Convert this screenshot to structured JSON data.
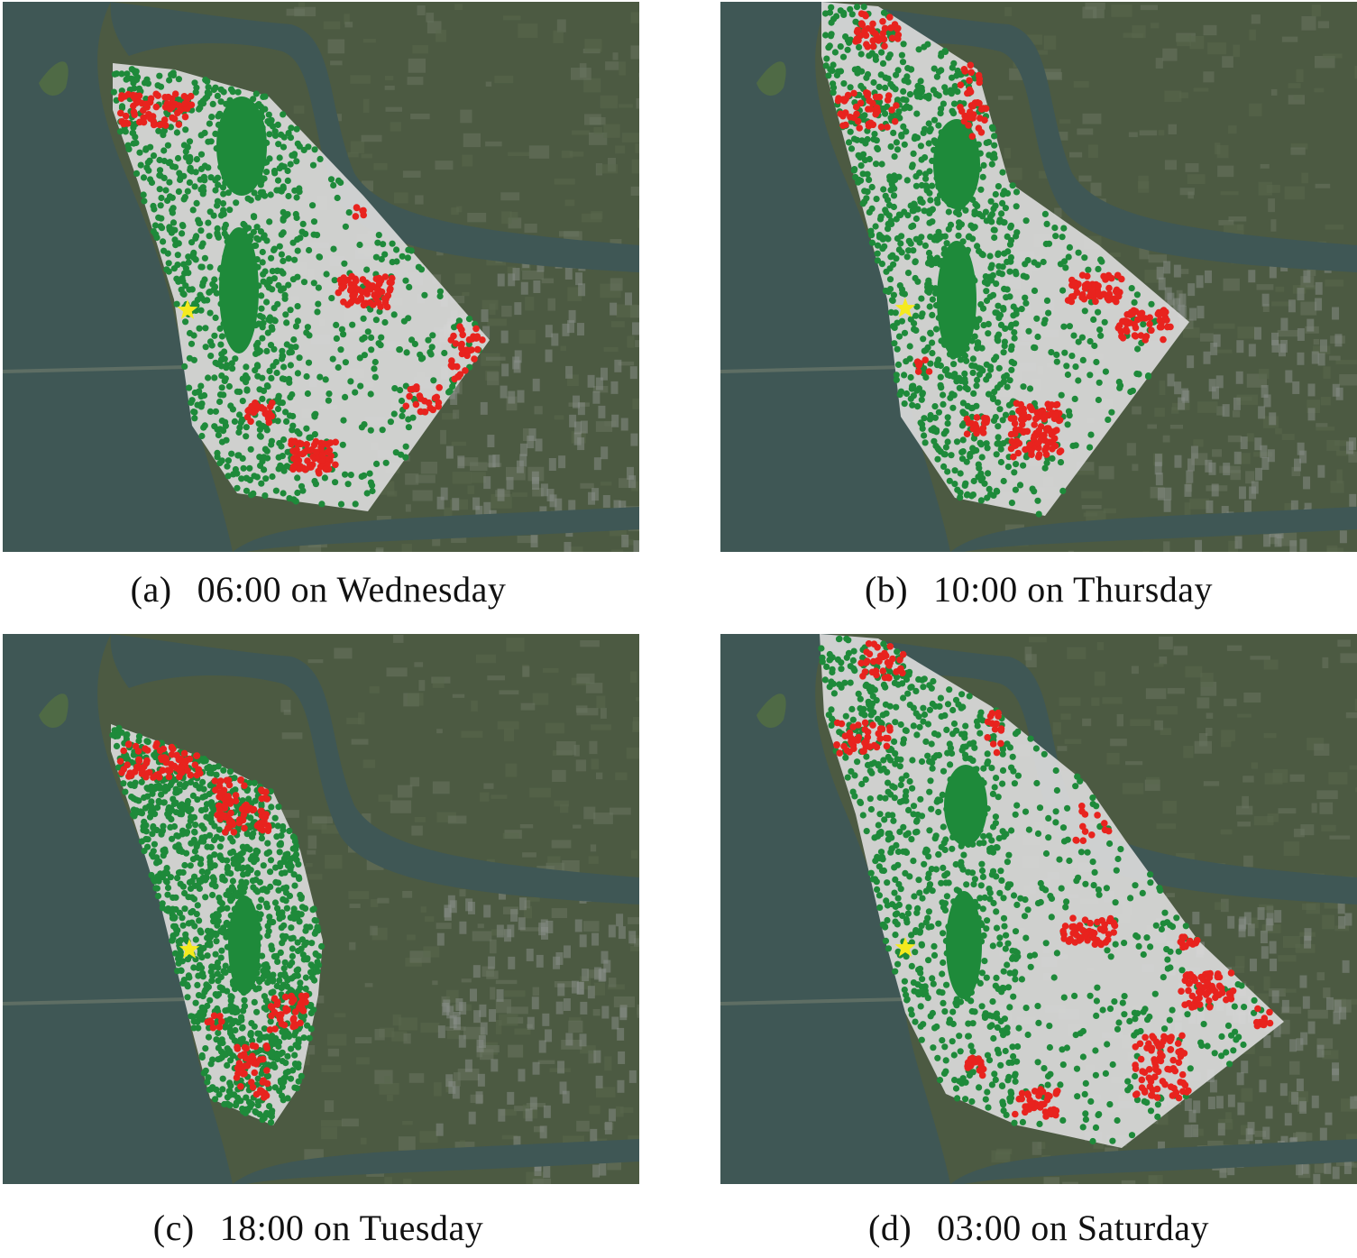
{
  "figure": {
    "panels": [
      {
        "id": "a",
        "letter": "(a)",
        "time": "06:00 on Wednesday"
      },
      {
        "id": "b",
        "letter": "(b)",
        "time": "10:00 on Thursday"
      },
      {
        "id": "c",
        "letter": "(c)",
        "time": "18:00 on Tuesday"
      },
      {
        "id": "d",
        "letter": "(d)",
        "time": "03:00 on Saturday"
      }
    ],
    "legend_colors": {
      "green_points": "#1e8a3a",
      "red_points": "#e8231e",
      "start_marker": "#f5ea1e",
      "service_area": "#d9d9d9",
      "water": "#3f5755",
      "land": "#4c5a42"
    }
  }
}
